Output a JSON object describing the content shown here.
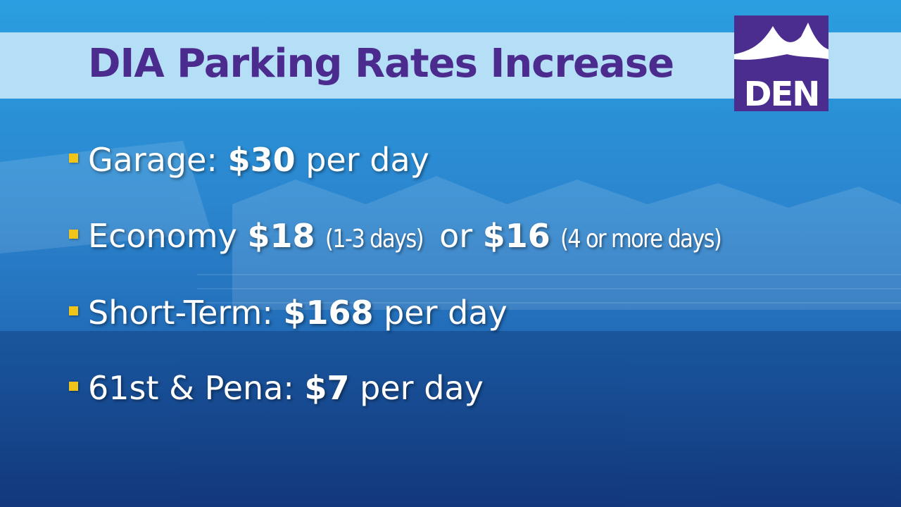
{
  "header": {
    "title": "DIA Parking Rates Increase",
    "logo": "DEN"
  },
  "bullets": [
    {
      "label": "Garage:",
      "price": "$30",
      "unit": "per day"
    },
    {
      "label": "Economy",
      "price": "$18",
      "note": "(1-3 days)",
      "joiner": "or",
      "price2": "$16",
      "note2": "(4 or more days)"
    },
    {
      "label": "Short-Term:",
      "price": "$168",
      "unit": "per day"
    },
    {
      "label": "61st & Pena:",
      "price": "$7",
      "unit": "per day"
    }
  ]
}
